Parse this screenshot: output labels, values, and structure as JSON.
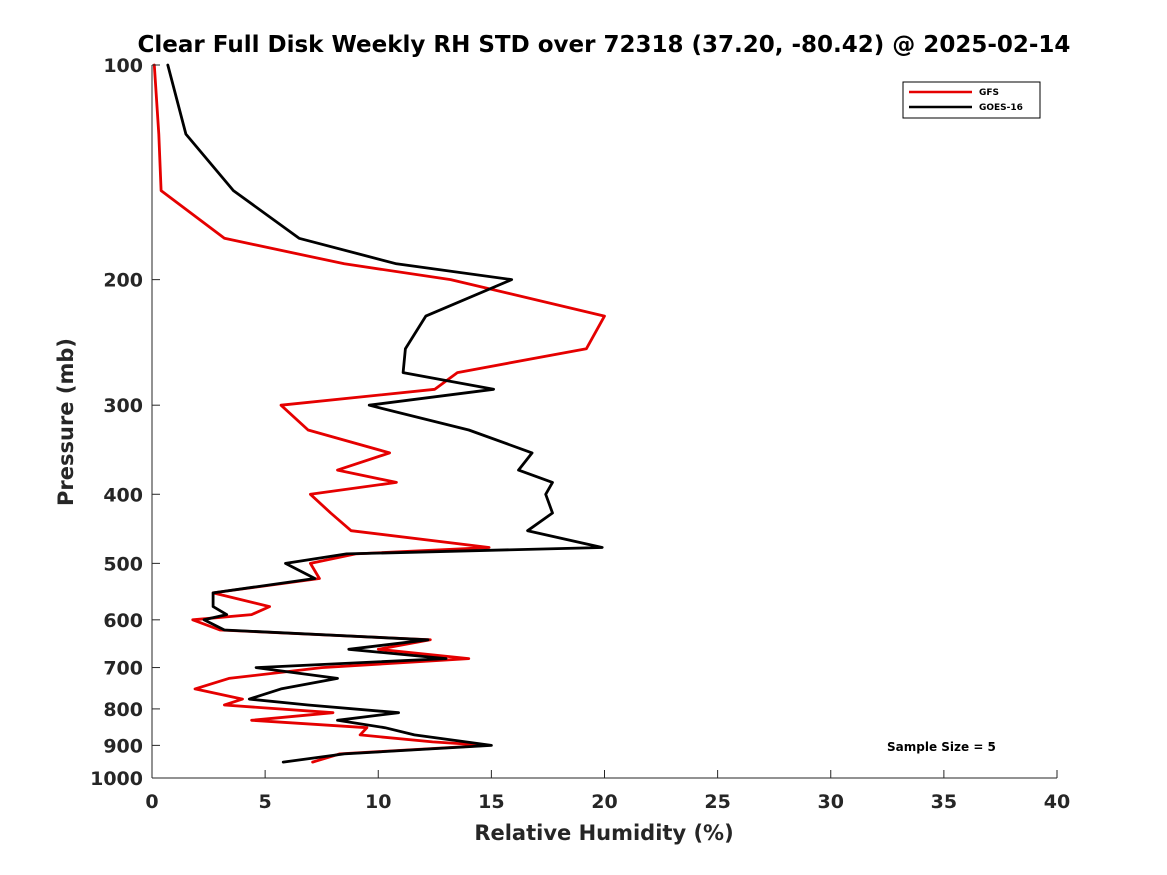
{
  "chart_data": {
    "type": "line",
    "title": "Clear Full Disk Weekly RH STD over 72318 (37.20, -80.42) @ 2025-02-14",
    "xlabel": "Relative Humidity (%)",
    "ylabel": "Pressure (mb)",
    "xlim": [
      0,
      40
    ],
    "ylim": [
      100,
      1000
    ],
    "yscale": "log",
    "y_reversed": true,
    "xticks": [
      0,
      5,
      10,
      15,
      20,
      25,
      30,
      35,
      40
    ],
    "yticks": [
      100,
      200,
      300,
      400,
      500,
      600,
      700,
      800,
      900,
      1000
    ],
    "grid": false,
    "legend_position": "top-right",
    "annotation": "Sample Size = 5",
    "series": [
      {
        "name": "GFS",
        "color": "#e50000",
        "points": [
          [
            0.1,
            100
          ],
          [
            0.3,
            125
          ],
          [
            0.4,
            150
          ],
          [
            3.2,
            175
          ],
          [
            8.5,
            190
          ],
          [
            13.2,
            200
          ],
          [
            20.0,
            225
          ],
          [
            19.2,
            250
          ],
          [
            13.5,
            270
          ],
          [
            12.5,
            285
          ],
          [
            5.7,
            300
          ],
          [
            6.9,
            325
          ],
          [
            10.5,
            350
          ],
          [
            8.2,
            370
          ],
          [
            10.8,
            385
          ],
          [
            7.0,
            400
          ],
          [
            7.9,
            425
          ],
          [
            8.8,
            450
          ],
          [
            14.9,
            475
          ],
          [
            9.0,
            485
          ],
          [
            7.0,
            500
          ],
          [
            7.4,
            525
          ],
          [
            2.7,
            550
          ],
          [
            5.2,
            575
          ],
          [
            4.4,
            590
          ],
          [
            1.8,
            600
          ],
          [
            3.0,
            620
          ],
          [
            12.3,
            640
          ],
          [
            10.0,
            660
          ],
          [
            14.0,
            680
          ],
          [
            7.5,
            700
          ],
          [
            3.4,
            725
          ],
          [
            1.9,
            750
          ],
          [
            4.0,
            775
          ],
          [
            3.2,
            790
          ],
          [
            8.0,
            810
          ],
          [
            4.4,
            830
          ],
          [
            9.5,
            850
          ],
          [
            9.2,
            870
          ],
          [
            12.4,
            890
          ],
          [
            14.8,
            900
          ],
          [
            8.3,
            925
          ],
          [
            7.1,
            950
          ]
        ]
      },
      {
        "name": "GOES-16",
        "color": "#000000",
        "points": [
          [
            0.7,
            100
          ],
          [
            1.5,
            125
          ],
          [
            3.6,
            150
          ],
          [
            6.5,
            175
          ],
          [
            10.8,
            190
          ],
          [
            15.9,
            200
          ],
          [
            12.1,
            225
          ],
          [
            11.2,
            250
          ],
          [
            11.1,
            270
          ],
          [
            15.1,
            285
          ],
          [
            9.6,
            300
          ],
          [
            14.0,
            325
          ],
          [
            16.8,
            350
          ],
          [
            16.2,
            370
          ],
          [
            17.7,
            385
          ],
          [
            17.4,
            400
          ],
          [
            17.7,
            425
          ],
          [
            16.6,
            450
          ],
          [
            19.9,
            475
          ],
          [
            8.6,
            485
          ],
          [
            5.9,
            500
          ],
          [
            7.2,
            525
          ],
          [
            2.7,
            550
          ],
          [
            2.7,
            575
          ],
          [
            3.3,
            590
          ],
          [
            2.3,
            600
          ],
          [
            3.2,
            620
          ],
          [
            12.2,
            640
          ],
          [
            8.7,
            660
          ],
          [
            13.0,
            680
          ],
          [
            4.6,
            700
          ],
          [
            8.2,
            725
          ],
          [
            5.7,
            750
          ],
          [
            4.3,
            775
          ],
          [
            6.9,
            790
          ],
          [
            10.9,
            810
          ],
          [
            8.2,
            830
          ],
          [
            10.3,
            850
          ],
          [
            11.6,
            870
          ],
          [
            15.0,
            900
          ],
          [
            8.5,
            925
          ],
          [
            5.8,
            950
          ]
        ]
      }
    ]
  }
}
